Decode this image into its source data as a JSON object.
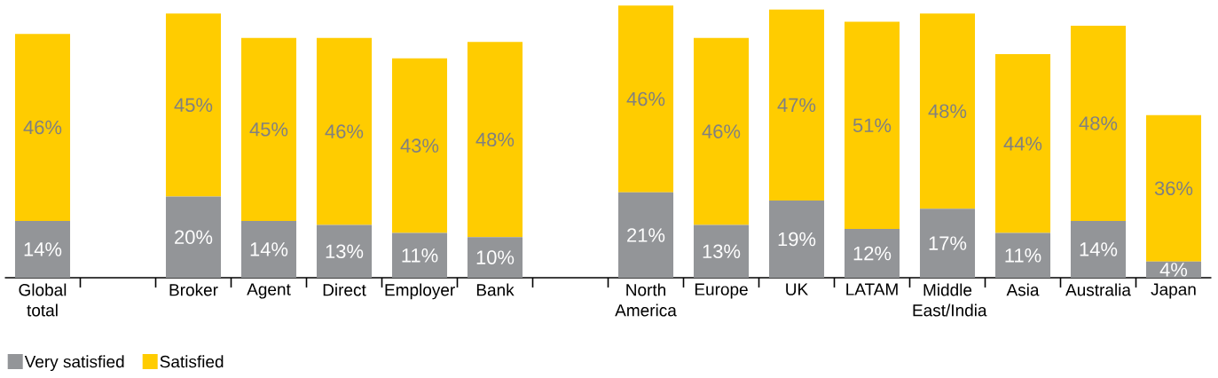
{
  "chart_data": {
    "type": "bar",
    "stacked": true,
    "legend": "bottom left",
    "categories": [
      "Global total",
      null,
      "Broker",
      "Agent",
      "Direct",
      "Employer",
      "Bank",
      null,
      "North America",
      "Europe",
      "UK",
      "LATAM",
      "Middle East/India",
      "Asia",
      "Australia",
      "Japan"
    ],
    "series": [
      {
        "name": "Very satisfied",
        "color": "#939598",
        "values": [
          14,
          null,
          20,
          14,
          13,
          11,
          10,
          null,
          21,
          13,
          19,
          12,
          17,
          11,
          14,
          4
        ],
        "value_labels": [
          "14%",
          null,
          "20%",
          "14%",
          "13%",
          "11%",
          "10%",
          null,
          "21%",
          "13%",
          "19%",
          "12%",
          "17%",
          "11%",
          "14%",
          "4%"
        ]
      },
      {
        "name": "Satisfied",
        "color": "#ffcc00",
        "values": [
          46,
          null,
          45,
          45,
          46,
          43,
          48,
          null,
          46,
          46,
          47,
          51,
          48,
          44,
          48,
          36
        ],
        "value_labels": [
          "46%",
          null,
          "45%",
          "45%",
          "46%",
          "43%",
          "48%",
          null,
          "46%",
          "46%",
          "47%",
          "51%",
          "48%",
          "44%",
          "48%",
          "36%"
        ]
      }
    ]
  }
}
